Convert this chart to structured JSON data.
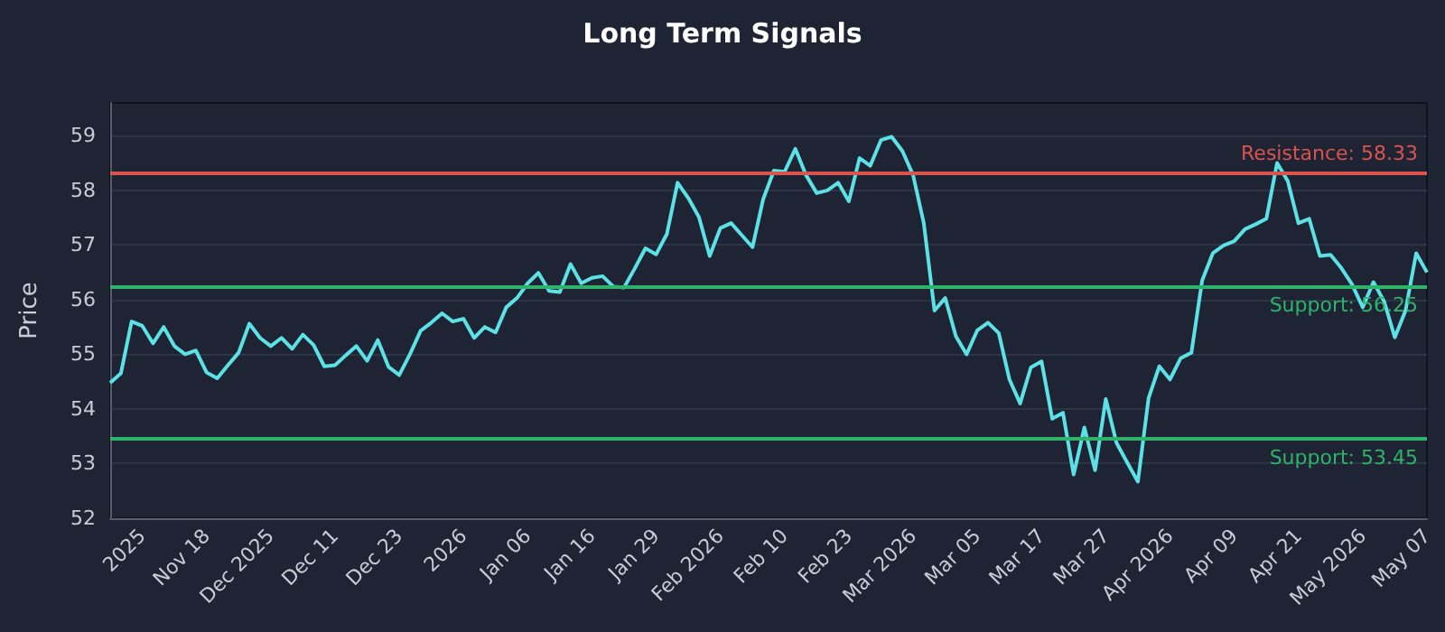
{
  "chart_data": {
    "type": "line",
    "title": "Long Term Signals",
    "ylabel": "Price",
    "categories": [
      null,
      null,
      null,
      "2025",
      null,
      null,
      null,
      null,
      null,
      "Nov 18",
      null,
      null,
      null,
      null,
      null,
      "Dec 2025",
      null,
      null,
      null,
      null,
      null,
      "Dec 11",
      null,
      null,
      null,
      null,
      null,
      "Dec 23",
      null,
      null,
      null,
      null,
      null,
      "2026",
      null,
      null,
      null,
      null,
      null,
      "Jan 06",
      null,
      null,
      null,
      null,
      null,
      "Jan 16",
      null,
      null,
      null,
      null,
      null,
      "Jan 29",
      null,
      null,
      null,
      null,
      null,
      "Feb 2026",
      null,
      null,
      null,
      null,
      null,
      "Feb 10",
      null,
      null,
      null,
      null,
      null,
      "Feb 23",
      null,
      null,
      null,
      null,
      null,
      "Mar 2026",
      null,
      null,
      null,
      null,
      null,
      "Mar 05",
      null,
      null,
      null,
      null,
      null,
      "Mar 17",
      null,
      null,
      null,
      null,
      null,
      "Mar 27",
      null,
      null,
      null,
      null,
      null,
      "Apr 2026",
      null,
      null,
      null,
      null,
      null,
      "Apr 09",
      null,
      null,
      null,
      null,
      null,
      "Apr 21",
      null,
      null,
      null,
      null,
      null,
      "May 2026",
      null,
      null,
      null,
      null,
      null,
      "May 07"
    ],
    "series": [
      {
        "color": "#5ce1e6",
        "values": [
          54.48,
          54.65,
          55.6,
          55.52,
          55.2,
          55.5,
          55.15,
          55.0,
          55.07,
          54.67,
          54.56,
          54.8,
          55.03,
          55.56,
          55.3,
          55.15,
          55.3,
          55.1,
          55.36,
          55.17,
          54.78,
          54.8,
          54.98,
          55.15,
          54.88,
          55.26,
          54.77,
          54.62,
          55.0,
          55.43,
          55.58,
          55.75,
          55.6,
          55.65,
          55.3,
          55.5,
          55.4,
          55.86,
          56.03,
          56.3,
          56.49,
          56.16,
          56.14,
          56.65,
          56.3,
          56.4,
          56.43,
          56.24,
          56.22,
          56.57,
          56.94,
          56.83,
          57.2,
          58.14,
          57.86,
          57.51,
          56.8,
          57.31,
          57.4,
          57.18,
          56.96,
          57.84,
          58.36,
          58.34,
          58.76,
          58.28,
          57.95,
          58.0,
          58.14,
          57.8,
          58.59,
          58.45,
          58.92,
          58.98,
          58.72,
          58.28,
          57.4,
          55.8,
          56.03,
          55.33,
          55.0,
          55.44,
          55.58,
          55.39,
          54.54,
          54.1,
          54.76,
          54.87,
          53.82,
          53.93,
          52.8,
          53.66,
          52.88,
          54.18,
          53.38,
          53.02,
          52.67,
          54.2,
          54.78,
          54.54,
          54.93,
          55.03,
          56.35,
          56.85,
          56.99,
          57.07,
          57.29,
          57.38,
          57.48,
          58.5,
          58.17,
          57.4,
          57.48,
          56.8,
          56.82,
          56.58,
          56.28,
          55.86,
          56.32,
          55.97,
          55.31,
          55.8,
          56.85,
          56.5
        ]
      }
    ],
    "ylim": [
      52,
      59.6
    ],
    "yticks": [
      52,
      53,
      54,
      55,
      56,
      57,
      58,
      59
    ],
    "grid": "y",
    "marker": "none",
    "line_style": "solid",
    "ref_lines": [
      {
        "axis": "y",
        "value": 58.33,
        "label": "Resistance: 58.33",
        "color": "#d9534f"
      },
      {
        "axis": "y",
        "value": 56.25,
        "label": "Support: 56.25",
        "color": "#2fb36a"
      },
      {
        "axis": "y",
        "value": 53.45,
        "label": "Support: 53.45",
        "color": "#2fb36a"
      }
    ]
  }
}
